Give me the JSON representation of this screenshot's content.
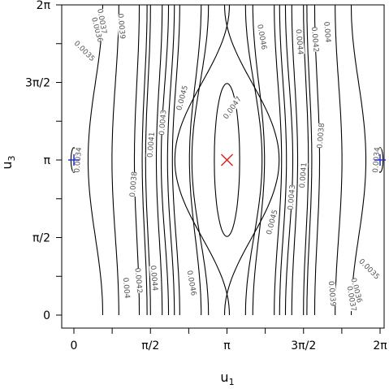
{
  "chart_data": {
    "type": "contour",
    "title": "",
    "xlabel": "u",
    "xlabel_sub": "1",
    "ylabel": "u",
    "ylabel_sub": "3",
    "xlim": [
      0,
      6.2832
    ],
    "ylim": [
      0,
      6.2832
    ],
    "x_ticks": [
      {
        "value": 0,
        "label": "0"
      },
      {
        "value": 1.5708,
        "label": "π/2"
      },
      {
        "value": 3.1416,
        "label": "π"
      },
      {
        "value": 4.7124,
        "label": "3π/2"
      },
      {
        "value": 6.2832,
        "label": "2π"
      }
    ],
    "y_ticks": [
      {
        "value": 0,
        "label": "0"
      },
      {
        "value": 1.5708,
        "label": "π/2"
      },
      {
        "value": 3.1416,
        "label": "π"
      },
      {
        "value": 4.7124,
        "label": "3π/2"
      },
      {
        "value": 6.2832,
        "label": "2π"
      }
    ],
    "levels": [
      {
        "value": 0.0034,
        "label": "0.0034",
        "dx": 0.06,
        "ry": 0.25,
        "label_x": 0.08,
        "label_y": 3.1416,
        "label_angle": -85
      },
      {
        "value": 0.0035,
        "label": "0.0035",
        "dx": -0.05,
        "a": 1.12,
        "label_x": 0.22,
        "label_y": 5.35,
        "label_angle": 45
      },
      {
        "value": 0.0036,
        "label": "0.0036",
        "dx": 0.38,
        "a": 0.34,
        "label_x": 0.48,
        "label_y": 5.78,
        "label_angle": 75
      },
      {
        "value": 0.0037,
        "label": "0.0037",
        "dx": 0.53,
        "a": 0.24,
        "label_x": 0.58,
        "label_y": 5.95,
        "label_angle": 80
      },
      {
        "value": 0.0038,
        "label": "0.0038",
        "dx": 1.2,
        "a": 0.15,
        "label_x": 1.22,
        "label_y": 2.65,
        "label_angle": -85
      },
      {
        "value": 0.0039,
        "label": "0.0039",
        "dx": 0.97,
        "a": 0.15,
        "label_x": 0.98,
        "label_y": 5.85,
        "label_angle": 85
      },
      {
        "value": 0.004,
        "label": "0.004",
        "dx": 1.08,
        "a": 0.14,
        "label_x": 1.08,
        "label_y": 0.55,
        "label_angle": 85
      },
      {
        "value": 0.0041,
        "label": "0.0041",
        "dx": 1.57,
        "a": 0.1,
        "label_x": 1.58,
        "label_y": 3.45,
        "label_angle": -85
      },
      {
        "value": 0.0042,
        "label": "0.0042",
        "dx": 1.33,
        "a": 0.12,
        "label_x": 1.33,
        "label_y": 0.7,
        "label_angle": 85
      },
      {
        "value": 0.0043,
        "label": "0.0043",
        "dx": 1.8,
        "a": 0.1,
        "label_x": 1.82,
        "label_y": 3.9,
        "label_angle": -85
      },
      {
        "value": 0.0044,
        "label": "0.0044",
        "dx": 1.64,
        "a": 0.1,
        "label_x": 1.65,
        "label_y": 0.75,
        "label_angle": 85
      },
      {
        "value": 0.0045,
        "label": "0.0045",
        "dx": 2.22,
        "a": 0.14,
        "label_x": 2.22,
        "label_y": 4.4,
        "label_angle": -75
      },
      {
        "value": 0.0046,
        "label": "0.0046",
        "dx": 2.55,
        "a": 0.3,
        "label_x": 2.42,
        "label_y": 0.65,
        "label_angle": 80
      },
      {
        "value": 0.0047,
        "label": "0.0047",
        "dx": 0.26,
        "ry": 1.55,
        "label_x": 3.25,
        "label_y": 4.2,
        "label_angle": -55
      }
    ],
    "markers": [
      {
        "name": "maximum",
        "symbol": "x",
        "x": 3.1416,
        "y": 3.1416,
        "color": "#dd2222"
      },
      {
        "name": "minimum-left",
        "symbol": "+",
        "x": 0.0,
        "y": 3.1416,
        "color": "#2233cc"
      },
      {
        "name": "minimum-right",
        "symbol": "+",
        "x": 6.2832,
        "y": 3.1416,
        "color": "#2233cc"
      }
    ],
    "line_color": "#000000",
    "label_color": "#555555"
  }
}
